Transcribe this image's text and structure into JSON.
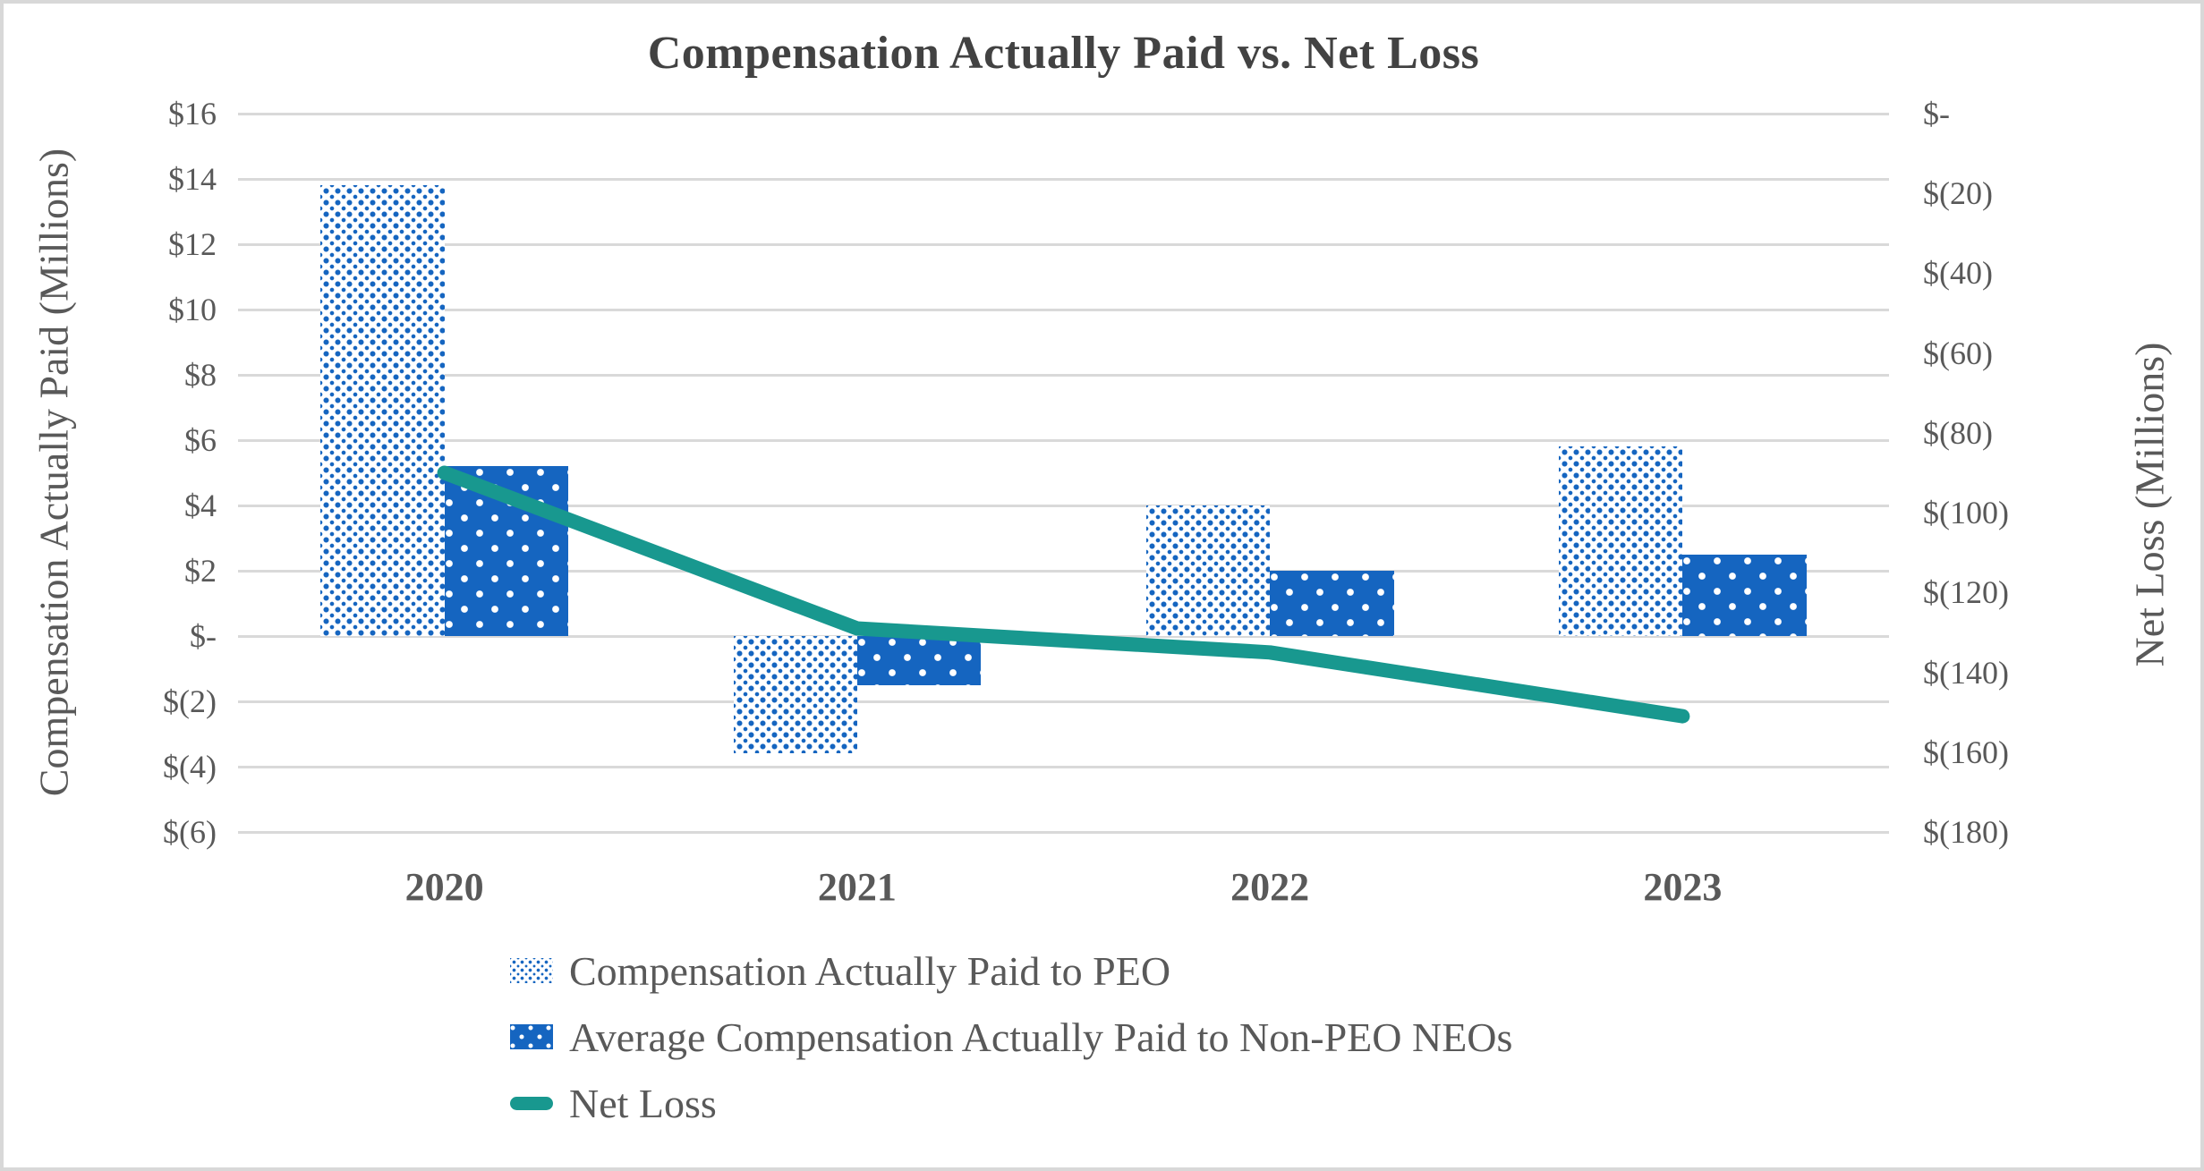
{
  "figure": {
    "title": "Compensation Actually Paid vs. Net Loss"
  },
  "chart_data": {
    "type": "bar",
    "title": "Compensation Actually Paid vs. Net Loss",
    "categories": [
      "2020",
      "2021",
      "2022",
      "2023"
    ],
    "series": [
      {
        "name": "Compensation Actually Paid to PEO",
        "type": "bar",
        "axis": "left",
        "pattern": "dotted-outline",
        "values": [
          13.8,
          -3.6,
          4.0,
          5.8
        ]
      },
      {
        "name": "Average Compensation Actually Paid to Non-PEO NEOs",
        "type": "bar",
        "axis": "left",
        "pattern": "dotted-solid",
        "values": [
          5.2,
          -1.5,
          2.0,
          2.5
        ]
      },
      {
        "name": "Net Loss",
        "type": "line",
        "axis": "right",
        "values": [
          -90,
          -129,
          -135,
          -151
        ]
      }
    ],
    "left_axis": {
      "label": "Compensation Actually Paid (Millions)",
      "min": -6,
      "max": 16,
      "step": 2,
      "ticks": [
        "$16",
        "$14",
        "$12",
        "$10",
        "$8",
        "$6",
        "$4",
        "$2",
        "$-",
        "$(2)",
        "$(4)",
        "$(6)"
      ]
    },
    "right_axis": {
      "label": "Net Loss (Millions)",
      "min": -180,
      "max": 0,
      "step": 20,
      "ticks": [
        "$-",
        "$(20)",
        "$(40)",
        "$(60)",
        "$(80)",
        "$(100)",
        "$(120)",
        "$(140)",
        "$(160)",
        "$(180)"
      ]
    },
    "grid": true,
    "legend_position": "bottom-left",
    "colors": {
      "bar_blue": "#1565C0",
      "line_teal": "#18988F",
      "gridline": "#D9D9D9",
      "text": "#595959",
      "title_text": "#424242"
    }
  }
}
